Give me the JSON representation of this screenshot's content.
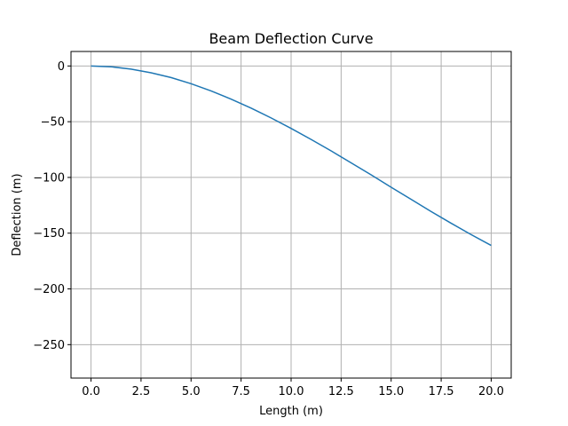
{
  "chart_data": {
    "type": "line",
    "title": "Beam Deflection Curve",
    "xlabel": "Length (m)",
    "ylabel": "Deflection (m)",
    "xlim": [
      -1.0,
      21.0
    ],
    "ylim": [
      -280.0,
      13.0
    ],
    "xticks": [
      0.0,
      2.5,
      5.0,
      7.5,
      10.0,
      12.5,
      15.0,
      17.5,
      20.0
    ],
    "xtick_labels": [
      "0.0",
      "2.5",
      "5.0",
      "7.5",
      "10.0",
      "12.5",
      "15.0",
      "17.5",
      "20.0"
    ],
    "yticks": [
      0,
      -50,
      -100,
      -150,
      -200,
      -250
    ],
    "ytick_labels": [
      "0",
      "−50",
      "−100",
      "−150",
      "−200",
      "−250"
    ],
    "grid": true,
    "line_color": "#1f77b4",
    "series": [
      {
        "x": [
          0,
          1,
          2,
          3,
          4,
          5,
          6,
          7,
          8,
          9,
          10,
          11,
          12,
          13,
          14,
          15,
          16,
          17,
          18,
          19,
          20
        ],
        "values": [
          0,
          -0.7,
          -2.8,
          -6.1,
          -10.4,
          -15.9,
          -22.4,
          -29.7,
          -37.8,
          -46.6,
          -56.0,
          -65.9,
          -76.2,
          -86.9,
          -97.7,
          -108.8,
          -119.7,
          -130.6,
          -141.1,
          -151.3,
          -161.0
        ]
      }
    ]
  }
}
